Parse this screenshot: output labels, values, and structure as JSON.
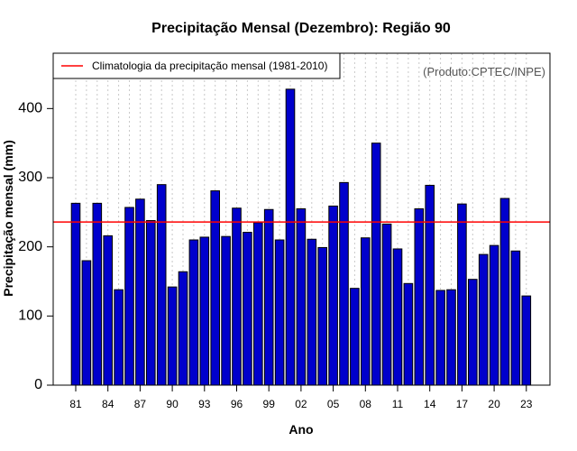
{
  "chart_data": {
    "type": "bar",
    "title": "Precipitação Mensal (Dezembro): Região 90",
    "xlabel": "Ano",
    "ylabel": "Precipitação mensal (mm)",
    "ylim": [
      0,
      480
    ],
    "yticks": [
      0,
      100,
      200,
      300,
      400
    ],
    "x_tick_labels": [
      "81",
      "84",
      "87",
      "90",
      "93",
      "96",
      "99",
      "02",
      "05",
      "08",
      "11",
      "14",
      "17",
      "20",
      "23"
    ],
    "x_tick_every": 3,
    "categories": [
      "1981",
      "1982",
      "1983",
      "1984",
      "1985",
      "1986",
      "1987",
      "1988",
      "1989",
      "1990",
      "1991",
      "1992",
      "1993",
      "1994",
      "1995",
      "1996",
      "1997",
      "1998",
      "1999",
      "2000",
      "2001",
      "2002",
      "2003",
      "2004",
      "2005",
      "2006",
      "2007",
      "2008",
      "2009",
      "2010",
      "2011",
      "2012",
      "2013",
      "2014",
      "2015",
      "2016",
      "2017",
      "2018",
      "2019",
      "2020",
      "2021",
      "2022",
      "2023"
    ],
    "values": [
      263,
      180,
      263,
      216,
      138,
      257,
      269,
      238,
      290,
      142,
      164,
      210,
      214,
      281,
      215,
      256,
      221,
      235,
      254,
      210,
      428,
      255,
      211,
      199,
      259,
      293,
      140,
      213,
      350,
      233,
      197,
      147,
      255,
      289,
      137,
      138,
      262,
      153,
      189,
      202,
      270,
      194,
      129
    ],
    "bar_color": "#0000cc",
    "grid": "vertical dotted",
    "climatology": {
      "label": "Climatologia da precipitação mensal (1981-2010)",
      "value": 236,
      "color": "#ff0000"
    },
    "legend_position": "top-left",
    "credit": "(Produto:CPTEC/INPE)"
  }
}
